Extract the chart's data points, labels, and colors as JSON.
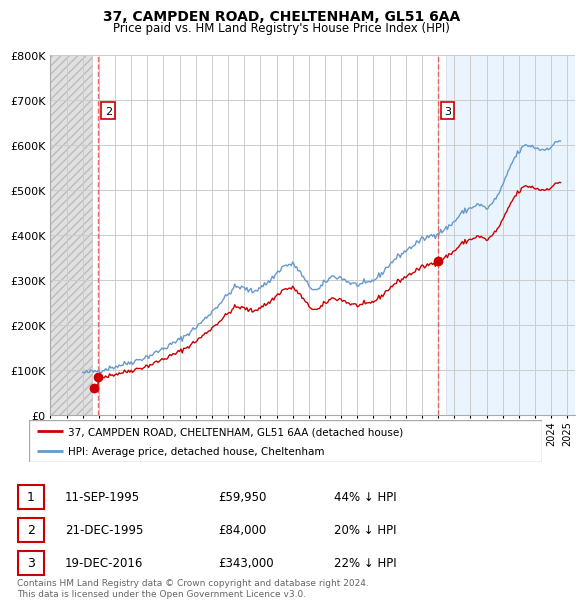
{
  "title": "37, CAMPDEN ROAD, CHELTENHAM, GL51 6AA",
  "subtitle": "Price paid vs. HM Land Registry's House Price Index (HPI)",
  "ylim": [
    0,
    800000
  ],
  "yticks": [
    0,
    100000,
    200000,
    300000,
    400000,
    500000,
    600000,
    700000,
    800000
  ],
  "ytick_labels": [
    "£0",
    "£100K",
    "£200K",
    "£300K",
    "£400K",
    "£500K",
    "£600K",
    "£700K",
    "£800K"
  ],
  "xlim_start": 1993.0,
  "xlim_end": 2025.5,
  "hatch_left_start": 1993.0,
  "hatch_left_end": 1995.58,
  "hatch_right_start": 2017.5,
  "hatch_right_end": 2025.5,
  "property_color": "#cc0000",
  "hpi_color": "#6699cc",
  "legend_property": "37, CAMPDEN ROAD, CHELTENHAM, GL51 6AA (detached house)",
  "legend_hpi": "HPI: Average price, detached house, Cheltenham",
  "t1_x": 1995.7,
  "t1_y": 59950,
  "t2_x": 1995.97,
  "t2_y": 84000,
  "t3_x": 2016.97,
  "t3_y": 343000,
  "table_rows": [
    {
      "num": "1",
      "date": "11-SEP-1995",
      "price": "£59,950",
      "hpi": "44% ↓ HPI"
    },
    {
      "num": "2",
      "date": "21-DEC-1995",
      "price": "£84,000",
      "hpi": "20% ↓ HPI"
    },
    {
      "num": "3",
      "date": "19-DEC-2016",
      "price": "£343,000",
      "hpi": "22% ↓ HPI"
    }
  ],
  "footnote": "Contains HM Land Registry data © Crown copyright and database right 2024.\nThis data is licensed under the Open Government Licence v3.0.",
  "background_color": "#ffffff",
  "grid_color": "#cccccc",
  "vline_color": "#ee4444",
  "box_color": "#cc0000",
  "hpi_base_value": 97000,
  "t1_hpi_base": 97000,
  "t2_hpi_base": 97000,
  "t3_hpi_base": 391000
}
